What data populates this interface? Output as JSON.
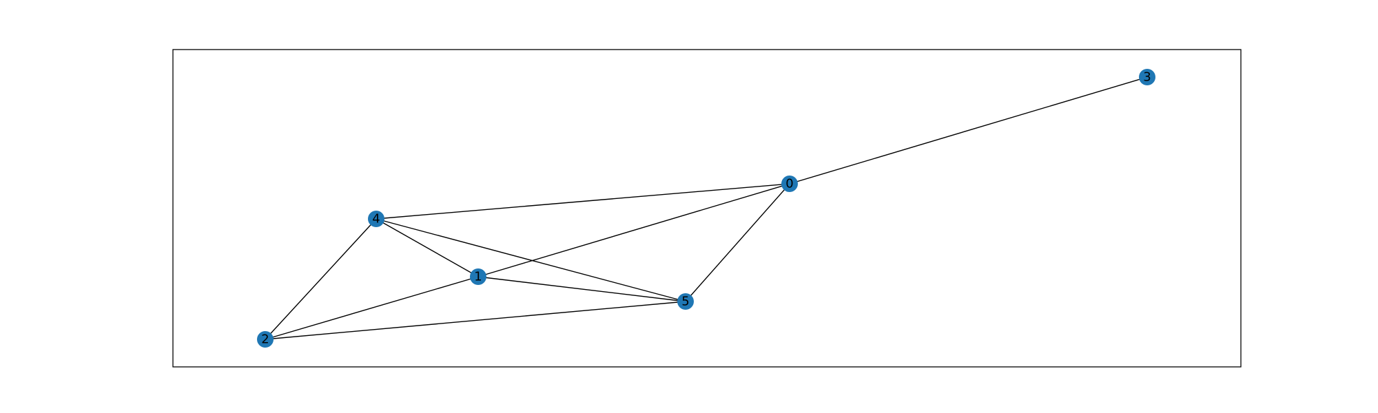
{
  "colors": {
    "node": "#1f77b4",
    "edge": "#000000",
    "frame": "#000000",
    "background": "#ffffff"
  },
  "graph": {
    "nodes": [
      {
        "id": "0",
        "label": "0"
      },
      {
        "id": "1",
        "label": "1"
      },
      {
        "id": "2",
        "label": "2"
      },
      {
        "id": "3",
        "label": "3"
      },
      {
        "id": "4",
        "label": "4"
      },
      {
        "id": "5",
        "label": "5"
      }
    ],
    "edges": [
      [
        "0",
        "3"
      ],
      [
        "0",
        "4"
      ],
      [
        "0",
        "1"
      ],
      [
        "0",
        "5"
      ],
      [
        "4",
        "1"
      ],
      [
        "4",
        "5"
      ],
      [
        "4",
        "2"
      ],
      [
        "1",
        "5"
      ],
      [
        "1",
        "2"
      ],
      [
        "2",
        "5"
      ]
    ]
  }
}
